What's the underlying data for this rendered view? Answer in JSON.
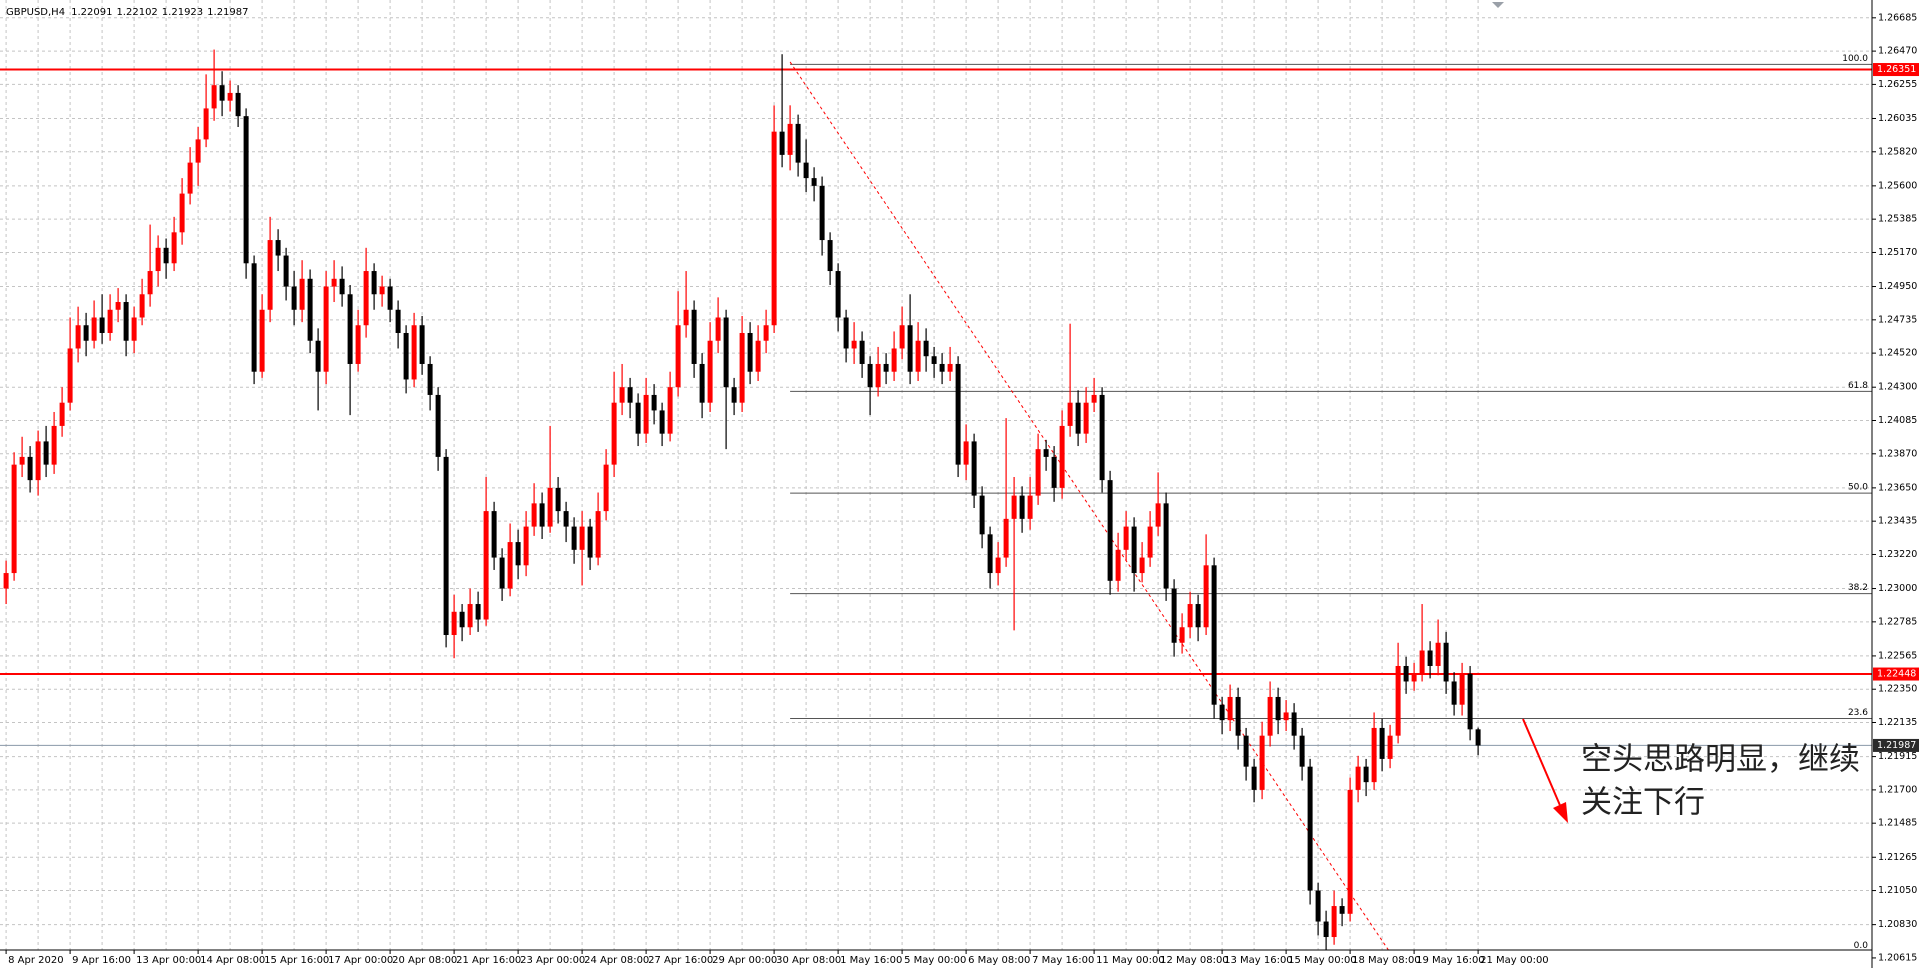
{
  "chart_data": {
    "type": "candlestick",
    "symbol": "GBPUSD,H4",
    "categories": [
      "8 Apr 2020",
      null,
      null,
      null,
      null,
      null,
      null,
      null,
      "9 Apr 16:00",
      null,
      null,
      null,
      null,
      null,
      null,
      null,
      "13 Apr 00:00",
      null,
      null,
      null,
      null,
      null,
      null,
      null,
      "14 Apr 08:00",
      null,
      null,
      null,
      null,
      null,
      null,
      null,
      "15 Apr 16:00",
      null,
      null,
      null,
      null,
      null,
      null,
      null,
      "17 Apr 00:00",
      null,
      null,
      null,
      null,
      null,
      null,
      null,
      "20 Apr 08:00",
      null,
      null,
      null,
      null,
      null,
      null,
      null,
      "21 Apr 16:00",
      null,
      null,
      null,
      null,
      null,
      null,
      null,
      "23 Apr 00:00",
      null,
      null,
      null,
      null,
      null,
      null,
      null,
      "24 Apr 08:00",
      null,
      null,
      null,
      null,
      null,
      null,
      null,
      "27 Apr 16:00",
      null,
      null,
      null,
      null,
      null,
      null,
      null,
      "29 Apr 00:00",
      null,
      null,
      null,
      null,
      null,
      null,
      null,
      "30 Apr 08:00",
      null,
      null,
      null,
      null,
      null,
      null,
      null,
      "1 May 16:00",
      null,
      null,
      null,
      null,
      null,
      null,
      null,
      "5 May 00:00",
      null,
      null,
      null,
      null,
      null,
      null,
      null,
      "6 May 08:00",
      null,
      null,
      null,
      null,
      null,
      null,
      null,
      "7 May 16:00",
      null,
      null,
      null,
      null,
      null,
      null,
      null,
      "11 May 00:00",
      null,
      null,
      null,
      null,
      null,
      null,
      null,
      "12 May 08:00",
      null,
      null,
      null,
      null,
      null,
      null,
      null,
      "13 May 16:00",
      null,
      null,
      null,
      null,
      null,
      null,
      null,
      "15 May 00:00",
      null,
      null,
      null,
      null,
      null,
      null,
      null,
      "18 May 08:00",
      null,
      null,
      null,
      null,
      null,
      null,
      null,
      "19 May 16:00",
      null,
      null,
      null,
      null,
      null,
      null,
      null,
      "21 May 00:00"
    ],
    "candles": [
      [
        1.23,
        1.2318,
        1.229,
        1.231
      ],
      [
        1.231,
        1.2388,
        1.2305,
        1.238
      ],
      [
        1.238,
        1.2398,
        1.2372,
        1.2385
      ],
      [
        1.2385,
        1.2392,
        1.2362,
        1.237
      ],
      [
        1.237,
        1.2402,
        1.236,
        1.2395
      ],
      [
        1.2395,
        1.2405,
        1.2372,
        1.238
      ],
      [
        1.238,
        1.2414,
        1.2374,
        1.2405
      ],
      [
        1.2405,
        1.243,
        1.2398,
        1.242
      ],
      [
        1.242,
        1.2475,
        1.2415,
        1.2455
      ],
      [
        1.2455,
        1.2482,
        1.2446,
        1.247
      ],
      [
        1.247,
        1.2478,
        1.245,
        1.246
      ],
      [
        1.246,
        1.2486,
        1.2455,
        1.2475
      ],
      [
        1.2475,
        1.249,
        1.2458,
        1.2465
      ],
      [
        1.2465,
        1.249,
        1.246,
        1.248
      ],
      [
        1.248,
        1.2494,
        1.2472,
        1.2485
      ],
      [
        1.2485,
        1.249,
        1.245,
        1.246
      ],
      [
        1.246,
        1.2482,
        1.2452,
        1.2475
      ],
      [
        1.2475,
        1.25,
        1.247,
        1.249
      ],
      [
        1.249,
        1.2535,
        1.2482,
        1.2505
      ],
      [
        1.2505,
        1.2528,
        1.2495,
        1.252
      ],
      [
        1.252,
        1.2526,
        1.25,
        1.251
      ],
      [
        1.251,
        1.254,
        1.2505,
        1.253
      ],
      [
        1.253,
        1.2565,
        1.2522,
        1.2555
      ],
      [
        1.2555,
        1.2585,
        1.2548,
        1.2575
      ],
      [
        1.2575,
        1.2598,
        1.256,
        1.259
      ],
      [
        1.259,
        1.2632,
        1.2585,
        1.261
      ],
      [
        1.261,
        1.2648,
        1.2602,
        1.2625
      ],
      [
        1.2625,
        1.2634,
        1.2605,
        1.2615
      ],
      [
        1.2615,
        1.2628,
        1.2608,
        1.262
      ],
      [
        1.262,
        1.2625,
        1.2598,
        1.2605
      ],
      [
        1.2605,
        1.261,
        1.25,
        1.251
      ],
      [
        1.251,
        1.2515,
        1.2432,
        1.244
      ],
      [
        1.244,
        1.249,
        1.2436,
        1.248
      ],
      [
        1.248,
        1.254,
        1.2472,
        1.2525
      ],
      [
        1.2525,
        1.2532,
        1.2505,
        1.2515
      ],
      [
        1.2515,
        1.252,
        1.2486,
        1.2495
      ],
      [
        1.2495,
        1.2505,
        1.247,
        1.248
      ],
      [
        1.248,
        1.2512,
        1.2472,
        1.25
      ],
      [
        1.25,
        1.2506,
        1.2452,
        1.246
      ],
      [
        1.246,
        1.2468,
        1.2415,
        1.244
      ],
      [
        1.244,
        1.2505,
        1.2432,
        1.2495
      ],
      [
        1.2495,
        1.2512,
        1.2485,
        1.25
      ],
      [
        1.25,
        1.2508,
        1.2482,
        1.249
      ],
      [
        1.249,
        1.2496,
        1.2412,
        1.2445
      ],
      [
        1.2445,
        1.248,
        1.244,
        1.247
      ],
      [
        1.247,
        1.252,
        1.2462,
        1.2505
      ],
      [
        1.2505,
        1.251,
        1.248,
        1.249
      ],
      [
        1.249,
        1.2502,
        1.2482,
        1.2495
      ],
      [
        1.2495,
        1.25,
        1.2472,
        1.248
      ],
      [
        1.248,
        1.2486,
        1.2455,
        1.2465
      ],
      [
        1.2465,
        1.247,
        1.2426,
        1.2435
      ],
      [
        1.2435,
        1.2478,
        1.243,
        1.247
      ],
      [
        1.247,
        1.2476,
        1.2438,
        1.2445
      ],
      [
        1.2445,
        1.245,
        1.2415,
        1.2425
      ],
      [
        1.2425,
        1.243,
        1.2376,
        1.2385
      ],
      [
        1.2385,
        1.239,
        1.2262,
        1.227
      ],
      [
        1.227,
        1.2296,
        1.2255,
        1.2285
      ],
      [
        1.2285,
        1.229,
        1.2266,
        1.2275
      ],
      [
        1.2275,
        1.23,
        1.227,
        1.229
      ],
      [
        1.229,
        1.2298,
        1.2272,
        1.228
      ],
      [
        1.228,
        1.2372,
        1.2276,
        1.235
      ],
      [
        1.235,
        1.2356,
        1.2312,
        1.232
      ],
      [
        1.232,
        1.2326,
        1.2292,
        1.23
      ],
      [
        1.23,
        1.2342,
        1.2295,
        1.233
      ],
      [
        1.233,
        1.2338,
        1.2306,
        1.2315
      ],
      [
        1.2315,
        1.235,
        1.2308,
        1.234
      ],
      [
        1.234,
        1.2368,
        1.2334,
        1.2355
      ],
      [
        1.2355,
        1.2362,
        1.2332,
        1.234
      ],
      [
        1.234,
        1.2405,
        1.2336,
        1.2365
      ],
      [
        1.2365,
        1.2372,
        1.2342,
        1.235
      ],
      [
        1.235,
        1.2356,
        1.233,
        1.234
      ],
      [
        1.234,
        1.2346,
        1.2316,
        1.2325
      ],
      [
        1.2325,
        1.235,
        1.2302,
        1.234
      ],
      [
        1.234,
        1.2345,
        1.2312,
        1.232
      ],
      [
        1.232,
        1.2362,
        1.2315,
        1.235
      ],
      [
        1.235,
        1.239,
        1.2344,
        1.238
      ],
      [
        1.238,
        1.244,
        1.2372,
        1.242
      ],
      [
        1.242,
        1.2445,
        1.2412,
        1.243
      ],
      [
        1.243,
        1.2436,
        1.241,
        1.242
      ],
      [
        1.242,
        1.2426,
        1.2392,
        1.24
      ],
      [
        1.24,
        1.2436,
        1.2394,
        1.2425
      ],
      [
        1.2425,
        1.2432,
        1.2406,
        1.2415
      ],
      [
        1.2415,
        1.242,
        1.2392,
        1.24
      ],
      [
        1.24,
        1.244,
        1.2395,
        1.243
      ],
      [
        1.243,
        1.2492,
        1.2424,
        1.247
      ],
      [
        1.247,
        1.2505,
        1.2462,
        1.248
      ],
      [
        1.248,
        1.2486,
        1.2436,
        1.2445
      ],
      [
        1.2445,
        1.2452,
        1.241,
        1.242
      ],
      [
        1.242,
        1.2472,
        1.2414,
        1.246
      ],
      [
        1.246,
        1.2488,
        1.2452,
        1.2475
      ],
      [
        1.2475,
        1.248,
        1.239,
        1.243
      ],
      [
        1.243,
        1.2436,
        1.2412,
        1.242
      ],
      [
        1.242,
        1.2476,
        1.2414,
        1.2465
      ],
      [
        1.2465,
        1.2472,
        1.2432,
        1.244
      ],
      [
        1.244,
        1.247,
        1.2434,
        1.246
      ],
      [
        1.246,
        1.248,
        1.2452,
        1.247
      ],
      [
        1.247,
        1.2612,
        1.2465,
        1.2595
      ],
      [
        1.2595,
        1.2645,
        1.2572,
        1.258
      ],
      [
        1.258,
        1.2612,
        1.257,
        1.26
      ],
      [
        1.26,
        1.2606,
        1.2566,
        1.2575
      ],
      [
        1.2575,
        1.259,
        1.2556,
        1.2565
      ],
      [
        1.2565,
        1.2572,
        1.255,
        1.256
      ],
      [
        1.256,
        1.2566,
        1.2515,
        1.2525
      ],
      [
        1.2525,
        1.253,
        1.2496,
        1.2505
      ],
      [
        1.2505,
        1.251,
        1.2466,
        1.2475
      ],
      [
        1.2475,
        1.248,
        1.2446,
        1.2455
      ],
      [
        1.2455,
        1.2472,
        1.2445,
        1.246
      ],
      [
        1.246,
        1.2466,
        1.2436,
        1.2445
      ],
      [
        1.2445,
        1.245,
        1.2412,
        1.243
      ],
      [
        1.243,
        1.2456,
        1.2424,
        1.2445
      ],
      [
        1.2445,
        1.2452,
        1.2432,
        1.244
      ],
      [
        1.244,
        1.2466,
        1.2434,
        1.2455
      ],
      [
        1.2455,
        1.2482,
        1.2448,
        1.247
      ],
      [
        1.247,
        1.249,
        1.2432,
        1.244
      ],
      [
        1.244,
        1.2472,
        1.2434,
        1.246
      ],
      [
        1.246,
        1.2468,
        1.244,
        1.245
      ],
      [
        1.245,
        1.2456,
        1.2436,
        1.2445
      ],
      [
        1.2445,
        1.2452,
        1.2432,
        1.244
      ],
      [
        1.244,
        1.2456,
        1.2434,
        1.2445
      ],
      [
        1.2445,
        1.245,
        1.2372,
        1.238
      ],
      [
        1.238,
        1.2406,
        1.237,
        1.2395
      ],
      [
        1.2395,
        1.24,
        1.2352,
        1.236
      ],
      [
        1.236,
        1.2366,
        1.2326,
        1.2335
      ],
      [
        1.2335,
        1.234,
        1.23,
        1.231
      ],
      [
        1.231,
        1.233,
        1.2302,
        1.232
      ],
      [
        1.232,
        1.241,
        1.2314,
        1.2345
      ],
      [
        1.2345,
        1.2372,
        1.2273,
        1.236
      ],
      [
        1.236,
        1.2366,
        1.2336,
        1.2345
      ],
      [
        1.2345,
        1.2372,
        1.2338,
        1.236
      ],
      [
        1.236,
        1.24,
        1.2354,
        1.239
      ],
      [
        1.239,
        1.2396,
        1.2376,
        1.2385
      ],
      [
        1.2385,
        1.2392,
        1.2356,
        1.2365
      ],
      [
        1.2365,
        1.2415,
        1.2358,
        1.2405
      ],
      [
        1.2405,
        1.2471,
        1.2398,
        1.242
      ],
      [
        1.242,
        1.2428,
        1.2392,
        1.24
      ],
      [
        1.24,
        1.243,
        1.2394,
        1.242
      ],
      [
        1.242,
        1.2436,
        1.2414,
        1.2425
      ],
      [
        1.2425,
        1.243,
        1.2362,
        1.237
      ],
      [
        1.237,
        1.2376,
        1.2296,
        1.2305
      ],
      [
        1.2305,
        1.2336,
        1.2298,
        1.2325
      ],
      [
        1.2325,
        1.235,
        1.2318,
        1.234
      ],
      [
        1.234,
        1.2346,
        1.2298,
        1.231
      ],
      [
        1.231,
        1.233,
        1.2304,
        1.232
      ],
      [
        1.232,
        1.235,
        1.2314,
        1.234
      ],
      [
        1.234,
        1.2375,
        1.2334,
        1.2355
      ],
      [
        1.2355,
        1.2362,
        1.2292,
        1.23
      ],
      [
        1.23,
        1.2306,
        1.2256,
        1.2265
      ],
      [
        1.2265,
        1.2284,
        1.2258,
        1.2275
      ],
      [
        1.2275,
        1.2298,
        1.2268,
        1.229
      ],
      [
        1.229,
        1.2296,
        1.2266,
        1.2275
      ],
      [
        1.2275,
        1.2335,
        1.227,
        1.2315
      ],
      [
        1.2315,
        1.232,
        1.2216,
        1.2225
      ],
      [
        1.2225,
        1.223,
        1.2206,
        1.2215
      ],
      [
        1.2215,
        1.2238,
        1.2208,
        1.223
      ],
      [
        1.223,
        1.2236,
        1.2196,
        1.2205
      ],
      [
        1.2205,
        1.221,
        1.2176,
        1.2185
      ],
      [
        1.2185,
        1.219,
        1.2162,
        1.217
      ],
      [
        1.217,
        1.2214,
        1.2164,
        1.2205
      ],
      [
        1.2205,
        1.224,
        1.2198,
        1.223
      ],
      [
        1.223,
        1.2236,
        1.2206,
        1.2215
      ],
      [
        1.2215,
        1.2228,
        1.2208,
        1.222
      ],
      [
        1.222,
        1.2226,
        1.2196,
        1.2205
      ],
      [
        1.2205,
        1.221,
        1.2176,
        1.2185
      ],
      [
        1.2185,
        1.219,
        1.2096,
        1.2105
      ],
      [
        1.2105,
        1.211,
        1.2076,
        1.2085
      ],
      [
        1.2085,
        1.2092,
        1.2063,
        1.2075
      ],
      [
        1.2075,
        1.2105,
        1.207,
        1.2095
      ],
      [
        1.2095,
        1.21,
        1.2082,
        1.209
      ],
      [
        1.209,
        1.2178,
        1.2085,
        1.217
      ],
      [
        1.217,
        1.2192,
        1.2162,
        1.2185
      ],
      [
        1.2185,
        1.219,
        1.2166,
        1.2175
      ],
      [
        1.2175,
        1.222,
        1.217,
        1.221
      ],
      [
        1.221,
        1.2216,
        1.2182,
        1.219
      ],
      [
        1.219,
        1.2212,
        1.2184,
        1.2205
      ],
      [
        1.2205,
        1.2265,
        1.22,
        1.225
      ],
      [
        1.225,
        1.2256,
        1.2232,
        1.224
      ],
      [
        1.224,
        1.2252,
        1.2234,
        1.2245
      ],
      [
        1.2245,
        1.229,
        1.224,
        1.226
      ],
      [
        1.226,
        1.2266,
        1.2242,
        1.225
      ],
      [
        1.225,
        1.228,
        1.2244,
        1.2265
      ],
      [
        1.2265,
        1.2272,
        1.2232,
        1.224
      ],
      [
        1.224,
        1.2246,
        1.2218,
        1.2225
      ],
      [
        1.2225,
        1.2252,
        1.2218,
        1.2245
      ],
      [
        1.2245,
        1.225,
        1.2202,
        1.22091
      ],
      [
        1.22091,
        1.22102,
        1.21923,
        1.21987
      ]
    ],
    "up_color": "#ff0000",
    "down_color": "#000000",
    "ylim": [
      1.2055,
      1.268
    ],
    "yticks": [
      1.26685,
      {
        "value": 1.2647,
        "label": "1.26470"
      },
      1.26255,
      1.26035,
      {
        "value": 1.2582,
        "label": "1.25820"
      },
      {
        "value": 1.256,
        "label": "1.25600"
      },
      1.25385,
      {
        "value": 1.2517,
        "label": "1.25170"
      },
      {
        "value": 1.2495,
        "label": "1.24950"
      },
      1.24735,
      {
        "value": 1.2452,
        "label": "1.24520"
      },
      {
        "value": 1.243,
        "label": "1.24300"
      },
      1.24085,
      {
        "value": 1.2387,
        "label": "1.23870"
      },
      {
        "value": 1.2365,
        "label": "1.23650"
      },
      1.23435,
      {
        "value": 1.2322,
        "label": "1.23220"
      },
      {
        "value": 1.23,
        "label": "1.23000"
      },
      1.22785,
      1.22565,
      {
        "value": 1.2235,
        "label": "1.22350"
      },
      1.22135,
      1.21915,
      {
        "value": 1.217,
        "label": "1.21700"
      },
      1.21485,
      1.21265,
      {
        "value": 1.2105,
        "label": "1.21050"
      },
      {
        "value": 1.2083,
        "label": "1.20830"
      },
      1.20615
    ],
    "grid": true,
    "hlines": [
      {
        "value": 1.26351,
        "color": "#ff0000"
      },
      {
        "value": 1.22448,
        "color": "#ff0000"
      }
    ],
    "bid": 1.21987,
    "fibonacci": {
      "start": 98,
      "color": "#555555",
      "levels": [
        {
          "label": "100.0",
          "value": 1.26384
        },
        {
          "label": "61.8",
          "value": 1.24273
        },
        {
          "label": "50.0",
          "value": 1.23616
        },
        {
          "label": "38.2",
          "value": 1.22967
        },
        {
          "label": "23.6",
          "value": 1.22161
        },
        {
          "label": "0.0",
          "value": 1.20658
        }
      ]
    },
    "trendline": {
      "from": [
        98,
        1.264
      ],
      "to": [
        173,
        1.2065
      ],
      "color": "#ff0000"
    },
    "annotation": [
      "空头思路明显，继续",
      "关注下行"
    ]
  }
}
